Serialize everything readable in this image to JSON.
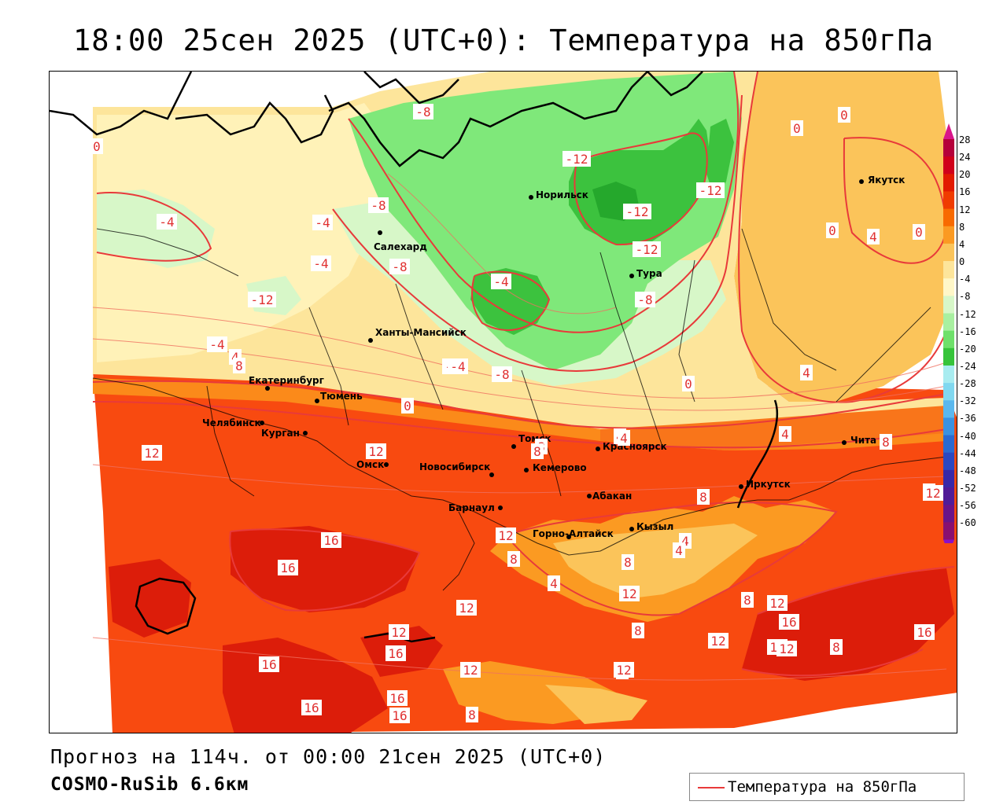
{
  "title": "18:00 25сен 2025 (UTC+0): Температура на 850гПа",
  "footer": {
    "forecast": "Прогноз на 114ч. от 00:00 21сен 2025 (UTC+0)",
    "model": "COSMO-RuSib 6.6км"
  },
  "legend": {
    "label": "Температура на 850гПа",
    "line_color": "#e83a3a"
  },
  "colorbar": {
    "ticks": [
      "28",
      "24",
      "20",
      "16",
      "12",
      "8",
      "4",
      "0",
      "-4",
      "-8",
      "-12",
      "-16",
      "-20",
      "-24",
      "-28",
      "-32",
      "-36",
      "-40",
      "-44",
      "-48",
      "-52",
      "-56",
      "-60"
    ],
    "colors": [
      "#b5003a",
      "#d0001a",
      "#e21a00",
      "#f03c00",
      "#f86a00",
      "#fb9a22",
      "#fbc45a",
      "#fde59b",
      "#fff7c8",
      "#d7f7c8",
      "#a8f0a0",
      "#6ee06a",
      "#36c43a",
      "#a8ecf0",
      "#80d8f0",
      "#5ab8ee",
      "#3a92e0",
      "#2a6ad0",
      "#2a48c0",
      "#3828a8",
      "#501c98",
      "#6a1488",
      "#881070"
    ]
  },
  "cities": [
    {
      "name": "Якутск"
    },
    {
      "name": "Норильск"
    },
    {
      "name": "Салехард"
    },
    {
      "name": "Тура"
    },
    {
      "name": "Ханты-Мансийск"
    },
    {
      "name": "Екатеринбург"
    },
    {
      "name": "Тюмень"
    },
    {
      "name": "Челябинск"
    },
    {
      "name": "Курган"
    },
    {
      "name": "Омск"
    },
    {
      "name": "Томск"
    },
    {
      "name": "Красноярск"
    },
    {
      "name": "Новосибирск"
    },
    {
      "name": "Кемерово"
    },
    {
      "name": "Барнаул"
    },
    {
      "name": "Абакан"
    },
    {
      "name": "Иркутск"
    },
    {
      "name": "Чита"
    },
    {
      "name": "Кызыл"
    },
    {
      "name": "Горно-Алтайск"
    }
  ],
  "isotherm_labels": [
    "-8",
    "0",
    "0",
    "0",
    "-12",
    "-12",
    "-12",
    "-12",
    "-4",
    "-4",
    "-4",
    "-8",
    "-8",
    "-8",
    "-4",
    "-12",
    "-4",
    "-4",
    "0",
    "4",
    "0",
    "4",
    "4",
    "8",
    "4",
    "0",
    "-4",
    "-8",
    "0",
    "8",
    "4",
    "8",
    "4",
    "12",
    "12",
    "8",
    "12",
    "8",
    "12",
    "8",
    "12",
    "16",
    "16",
    "12",
    "8",
    "4",
    "8",
    "12",
    "4",
    "4",
    "8",
    "12",
    "8",
    "8",
    "16",
    "16",
    "12",
    "16",
    "12",
    "12",
    "16",
    "16",
    "8",
    "16",
    "16",
    "12",
    "8",
    "16"
  ]
}
